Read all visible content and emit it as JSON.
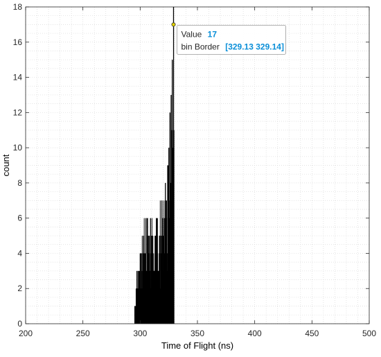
{
  "chart_data": {
    "type": "bar",
    "title": "",
    "xlabel": "Time of Flight (ns)",
    "ylabel": "count",
    "xlim": [
      200,
      500
    ],
    "ylim": [
      0,
      18
    ],
    "xticks": [
      200,
      250,
      300,
      350,
      400,
      450,
      500
    ],
    "yticks": [
      0,
      2,
      4,
      6,
      8,
      10,
      12,
      14,
      16,
      18
    ],
    "grid": true,
    "bin_width": 0.01,
    "bar_color": "#000000",
    "histogram_envelope": [
      {
        "x": 295,
        "y": 0
      },
      {
        "x": 295.5,
        "y": 1
      },
      {
        "x": 296.5,
        "y": 2
      },
      {
        "x": 298,
        "y": 3
      },
      {
        "x": 300,
        "y": 4
      },
      {
        "x": 301,
        "y": 4
      },
      {
        "x": 303,
        "y": 5
      },
      {
        "x": 305,
        "y": 6
      },
      {
        "x": 307,
        "y": 5
      },
      {
        "x": 309,
        "y": 6
      },
      {
        "x": 311,
        "y": 5
      },
      {
        "x": 313,
        "y": 5
      },
      {
        "x": 315,
        "y": 6
      },
      {
        "x": 317,
        "y": 5
      },
      {
        "x": 319,
        "y": 7
      },
      {
        "x": 321,
        "y": 6
      },
      {
        "x": 322,
        "y": 8
      },
      {
        "x": 323,
        "y": 6
      },
      {
        "x": 324,
        "y": 9
      },
      {
        "x": 325,
        "y": 10
      },
      {
        "x": 326,
        "y": 12
      },
      {
        "x": 327,
        "y": 13
      },
      {
        "x": 328,
        "y": 15
      },
      {
        "x": 329.13,
        "y": 17
      },
      {
        "x": 329.3,
        "y": 2
      },
      {
        "x": 329.5,
        "y": 0
      }
    ],
    "datatip": {
      "label_value": "Value",
      "value": "17",
      "label_bin": "bin Border",
      "bin_border": "[329.13 329.14]",
      "x": 329.13,
      "y": 17
    }
  },
  "colors": {
    "grid": "#d9d9d9",
    "axis": "#262626",
    "bars": "#000000",
    "tip_border": "#9a9a9a",
    "tip_value": "#0a8fd8",
    "marker": "#e6d400"
  }
}
